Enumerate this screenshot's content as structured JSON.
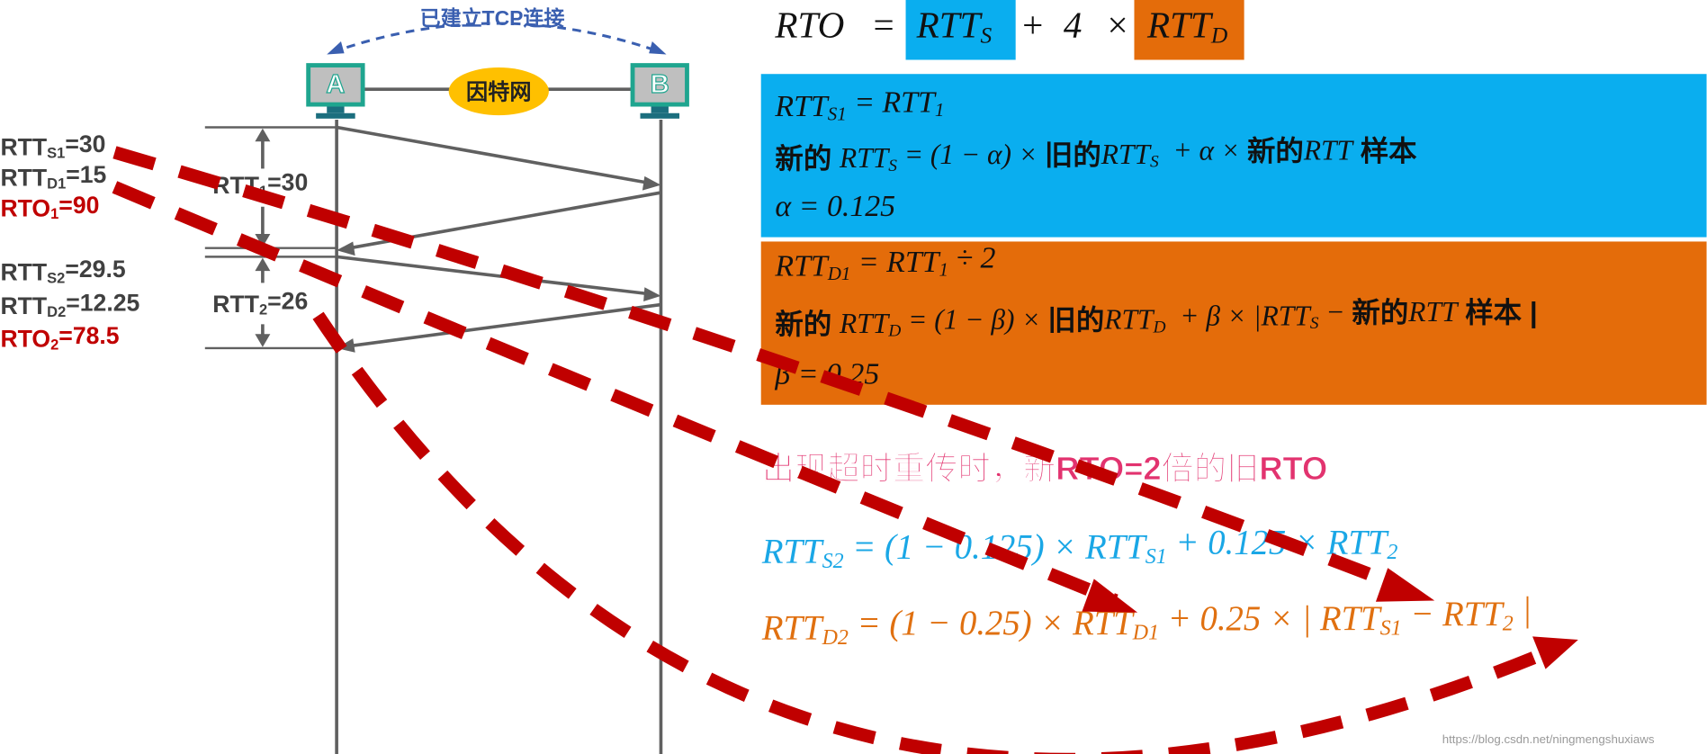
{
  "connection_note": "已建立TCP连接",
  "hosts": [
    "A",
    "B"
  ],
  "network": "因特网",
  "left_labels": [
    [
      {
        "t": "RTT",
        "sub": "S1"
      },
      "=30"
    ],
    [
      {
        "t": "RTT",
        "sub": "D1"
      },
      "=15"
    ],
    [
      {
        "t": "RTO",
        "sub": "1"
      },
      "=90"
    ],
    [
      {
        "t": "RTT",
        "sub": "S2"
      },
      "=29.5"
    ],
    [
      {
        "t": "RTT",
        "sub": "D2"
      },
      "=12.25"
    ],
    [
      {
        "t": "RTO",
        "sub": "2"
      },
      "=78.5"
    ]
  ],
  "rtt_labels": [
    [
      {
        "t": "RTT",
        "sub": "1"
      },
      "=30"
    ],
    [
      {
        "t": "RTT",
        "sub": "2"
      },
      "=26"
    ]
  ],
  "rto_formula": [
    "RTO",
    "=",
    {
      "t": "RTT",
      "sub": "S"
    },
    "+",
    "4",
    "×",
    {
      "t": "RTT",
      "sub": "D"
    }
  ],
  "blue_panel": [
    [
      {
        "t": "RTT",
        "sub": "S1"
      },
      " = ",
      {
        "t": "RTT",
        "sub": "1"
      }
    ],
    [
      "新的 ",
      {
        "t": "RTT",
        "sub": "S"
      },
      " = (1 − α) × ",
      "旧的",
      {
        "t": "RTT",
        "sub": "S"
      },
      "  + α × ",
      "新的",
      {
        "t": "RTT"
      },
      " 样本"
    ],
    [
      "α = 0.125"
    ]
  ],
  "orange_panel": [
    [
      {
        "t": "RTT",
        "sub": "D1"
      },
      " = ",
      {
        "t": "RTT",
        "sub": "1"
      },
      " ÷ 2"
    ],
    [
      "新的 ",
      {
        "t": "RTT",
        "sub": "D"
      },
      " = (1 − β) × ",
      "旧的",
      {
        "t": "RTT",
        "sub": "D"
      },
      "  + β × |",
      {
        "t": "RTT",
        "sub": "S"
      },
      " − ",
      "新的",
      {
        "t": "RTT"
      },
      " 样本 |"
    ],
    [
      "β = 0.25"
    ]
  ],
  "timeout_note": "出现超时重传时，新RTO=2倍的旧RTO",
  "rtts2_formula": [
    {
      "t": "RTT",
      "sub": "S2"
    },
    " = (1 − 0.125) × ",
    {
      "t": "RTT",
      "sub": "S1"
    },
    " + 0.125 × ",
    {
      "t": "RTT",
      "sub": "2"
    }
  ],
  "rttd2_formula": [
    {
      "t": "RTT",
      "sub": "D2"
    },
    " = (1 − 0.25) × ",
    {
      "t": "RTT",
      "sub": "D1"
    },
    " + 0.25 × | ",
    {
      "t": "RTT",
      "sub": "S1"
    },
    " − ",
    {
      "t": "RTT",
      "sub": "2"
    },
    " |"
  ],
  "watermark": "https://blog.csdn.net/ningmengshuxiaws"
}
